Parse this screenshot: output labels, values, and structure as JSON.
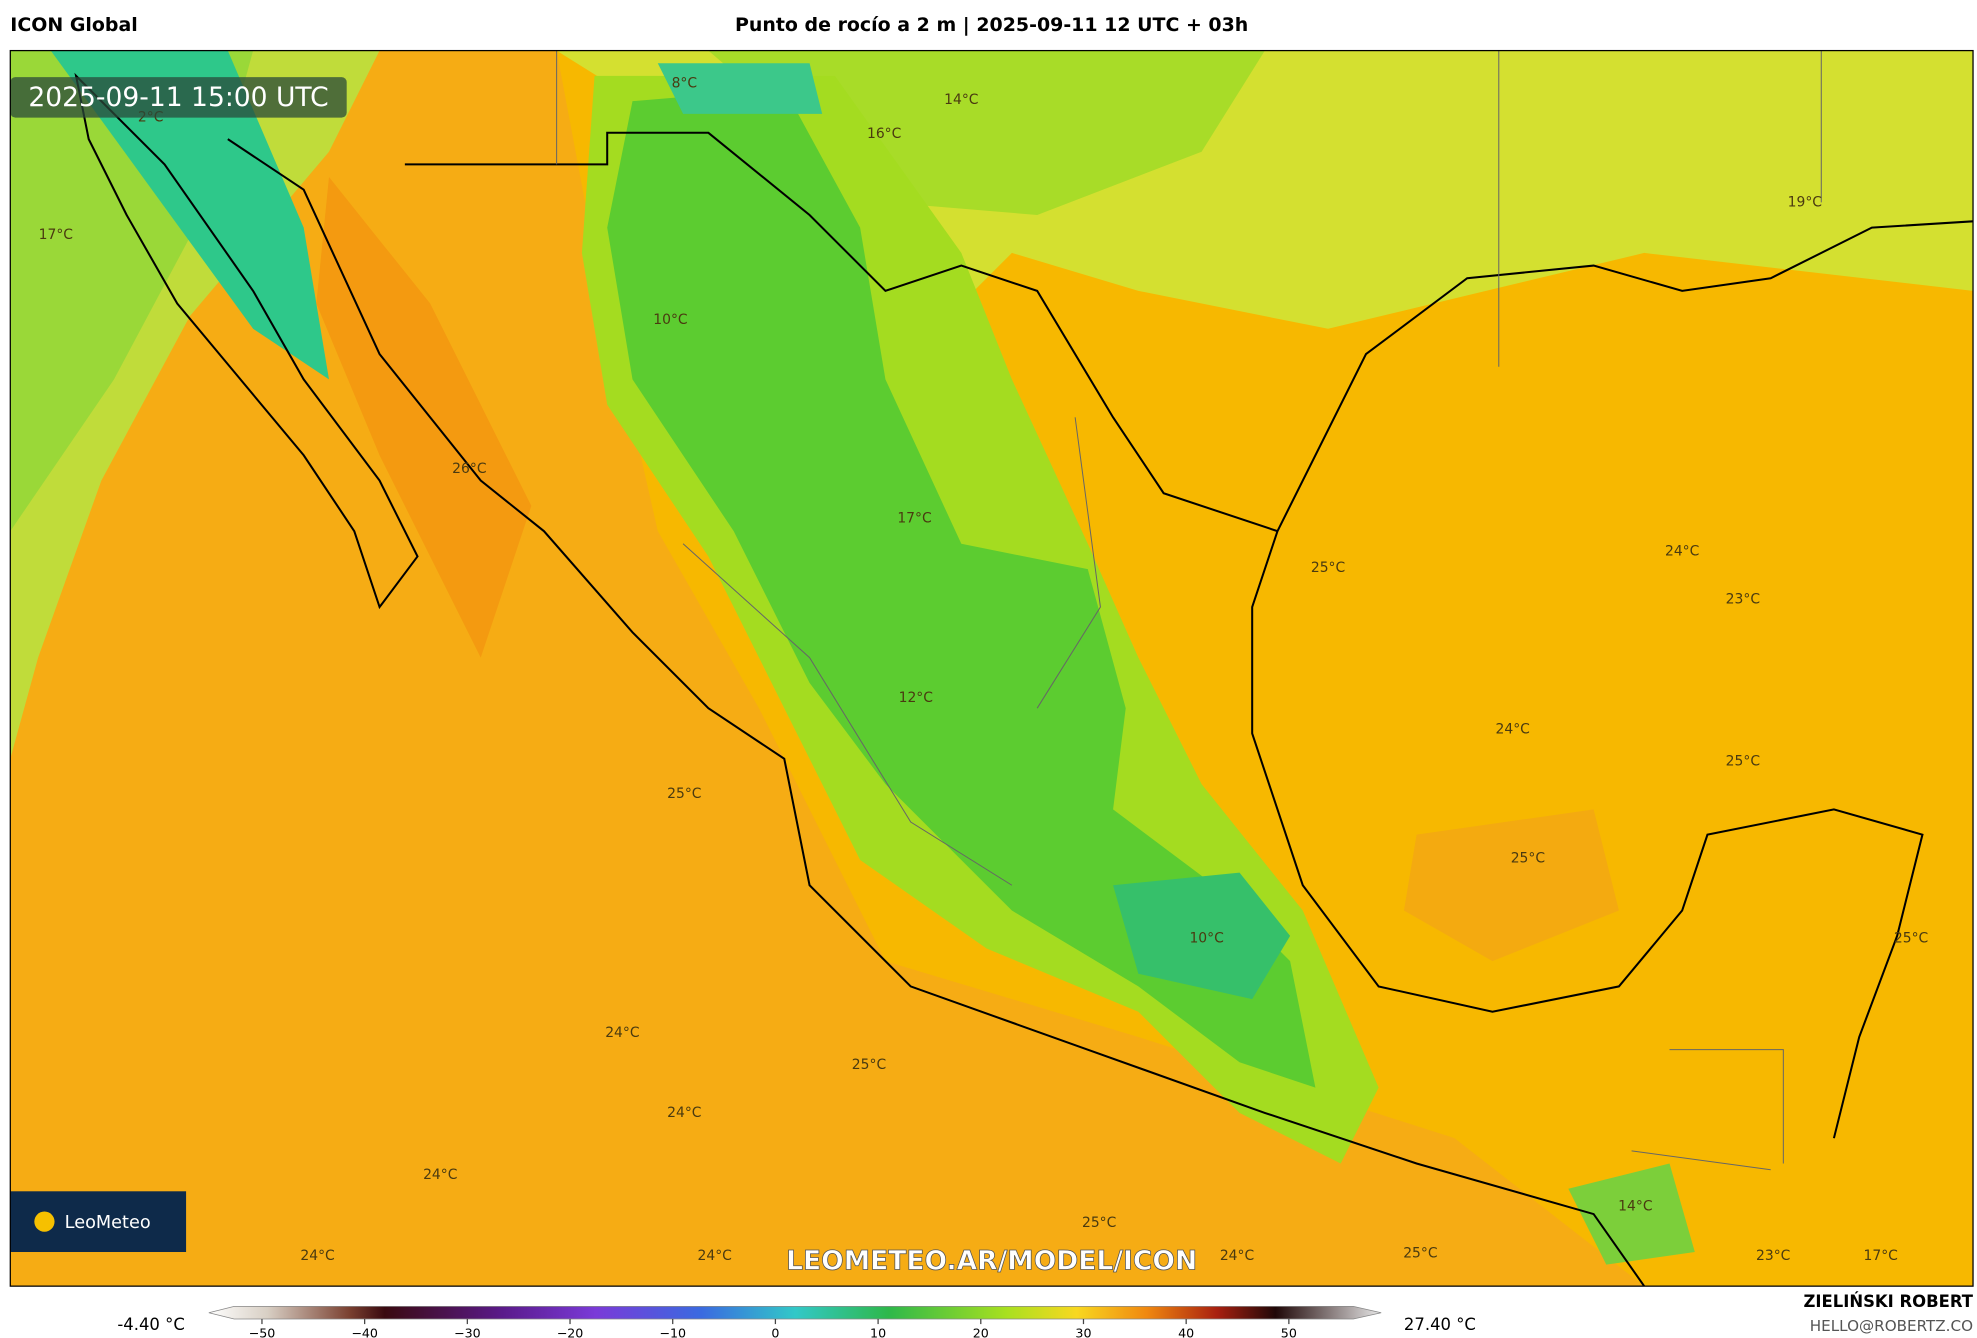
{
  "header": {
    "left": "ICON Global",
    "title": "Punto de rocío a 2 m | 2025-09-11 12 UTC + 03h"
  },
  "map": {
    "timestamp": "2025-09-11 15:00 UTC",
    "logo": "LeoMeteo",
    "watermark": "LEOMETEO.AR/MODEL/ICON",
    "labels": [
      "8°C",
      "2°C",
      "14°C",
      "16°C",
      "19°C",
      "17°C",
      "10°C",
      "26°C",
      "17°C",
      "25°C",
      "24°C",
      "23°C",
      "12°C",
      "24°C",
      "25°C",
      "25°C",
      "25°C",
      "10°C",
      "25°C",
      "24°C",
      "25°C",
      "24°C",
      "24°C",
      "14°C",
      "25°C",
      "24°C",
      "24°C",
      "24°C",
      "25°C",
      "23°C",
      "17°C"
    ]
  },
  "colorbar": {
    "min": "-4.40 °C",
    "max": "27.40 °C",
    "ticks": [
      "−50",
      "−40",
      "−30",
      "−20",
      "−10",
      "0",
      "10",
      "20",
      "30",
      "40",
      "50"
    ]
  },
  "credits": {
    "author": "ZIELIŃSKI ROBERT",
    "email": "HELLO@ROBERTZ.CO"
  }
}
